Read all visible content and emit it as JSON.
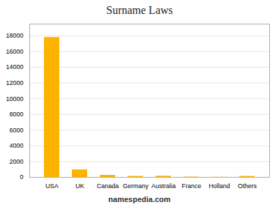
{
  "chart_data": {
    "type": "bar",
    "title": "Surname Laws",
    "categories": [
      "USA",
      "UK",
      "Canada",
      "Germany",
      "Australia",
      "France",
      "Holland",
      "Others"
    ],
    "values": [
      17800,
      950,
      260,
      130,
      150,
      40,
      20,
      130
    ],
    "color": "#FFB300",
    "ylim": [
      0,
      19500
    ],
    "yticks": [
      0,
      2000,
      4000,
      6000,
      8000,
      10000,
      12000,
      14000,
      16000,
      18000
    ],
    "grid": true,
    "annotations": [
      "namespedia.com"
    ]
  }
}
